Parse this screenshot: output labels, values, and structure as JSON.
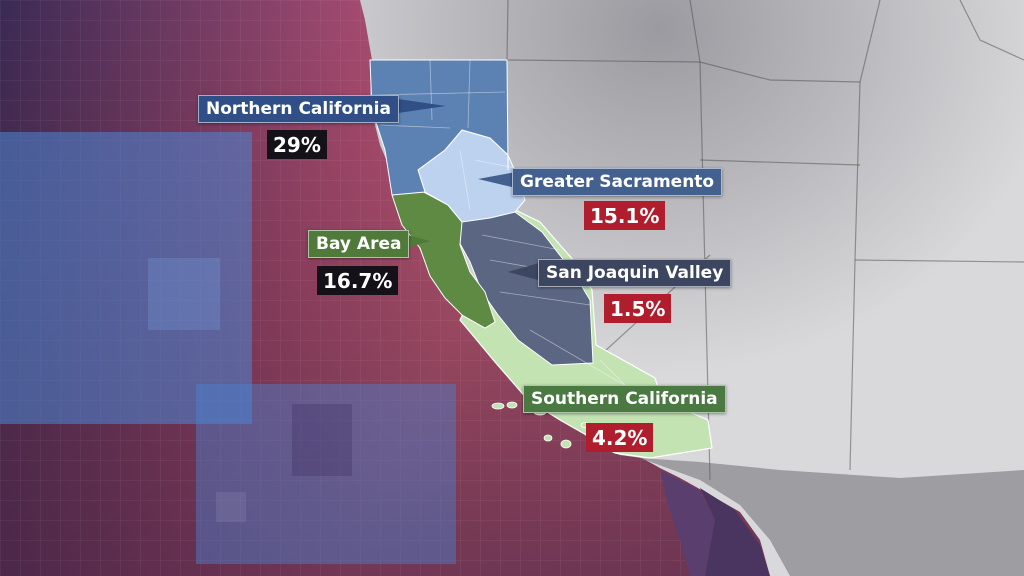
{
  "map": {
    "regions": [
      {
        "key": "northern",
        "name": "Northern California",
        "value": "29%",
        "value_style": "dark",
        "color": "#5c82b3"
      },
      {
        "key": "sacramento",
        "name": "Greater Sacramento",
        "value": "15.1%",
        "value_style": "red",
        "color": "#bcd2ee"
      },
      {
        "key": "bay",
        "name": "Bay Area",
        "value": "16.7%",
        "value_style": "dark",
        "color": "#5e8a44"
      },
      {
        "key": "sanjoaquin",
        "name": "San Joaquin Valley",
        "value": "1.5%",
        "value_style": "red",
        "color": "#5b6782"
      },
      {
        "key": "southern",
        "name": "Southern California",
        "value": "4.2%",
        "value_style": "red",
        "color": "#c3e3b3"
      }
    ],
    "colors": {
      "background_left": "#3b2a55",
      "background_mid": "#c95a78",
      "land_other_states": "#d8d8da",
      "ocean_grid_line": "#ffffff",
      "percent_dark": "#141218",
      "percent_red": "#b01e2e"
    }
  }
}
